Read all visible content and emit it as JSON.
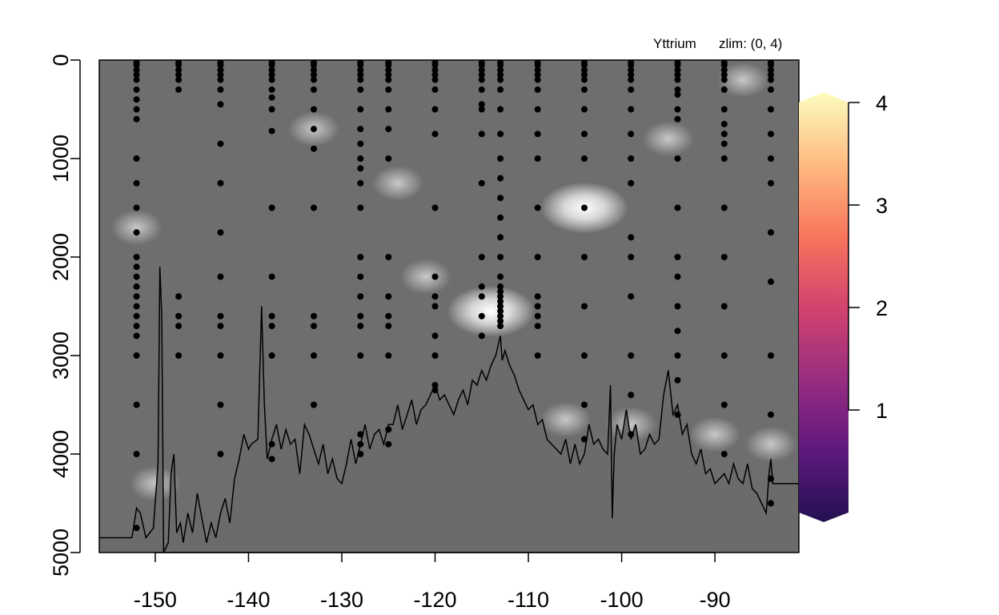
{
  "chart_data": {
    "type": "heatmap",
    "title": "Yttrium",
    "zlim_label": "zlim: (0, 4)",
    "xlabel": "",
    "ylabel": "",
    "xlim": [
      -156,
      -81
    ],
    "ylim": [
      5000,
      0
    ],
    "zlim": [
      0,
      4
    ],
    "x_ticks": [
      -150,
      -140,
      -130,
      -120,
      -110,
      -100,
      -90
    ],
    "x_tick_labels": [
      "-150",
      "-140",
      "-130",
      "-120",
      "-110",
      "-100",
      "-90"
    ],
    "y_ticks": [
      0,
      1000,
      2000,
      3000,
      4000,
      5000
    ],
    "y_tick_labels": [
      "0",
      "1000",
      "2000",
      "3000",
      "4000",
      "5000"
    ],
    "colorbar": {
      "palette": "magma",
      "ticks": [
        1,
        2,
        3,
        4
      ],
      "tick_labels": [
        "1",
        "2",
        "3",
        "4"
      ],
      "stops": [
        "#231151",
        "#5f187f",
        "#982d80",
        "#d3436e",
        "#f8765c",
        "#febb81",
        "#fcfdbf"
      ]
    },
    "field_colors": {
      "background": "#6e6e6e",
      "seafloor": "#6b6b6b"
    },
    "highlights": [
      {
        "x": -104,
        "y": 1500,
        "level": "high"
      },
      {
        "x": -114,
        "y": 2550,
        "level": "high"
      },
      {
        "x": -95,
        "y": 800,
        "level": "medium"
      },
      {
        "x": -87,
        "y": 200,
        "level": "medium"
      },
      {
        "x": -99,
        "y": 3700,
        "level": "medium"
      },
      {
        "x": -90,
        "y": 3800,
        "level": "medium"
      },
      {
        "x": -84,
        "y": 3900,
        "level": "medium"
      },
      {
        "x": -106,
        "y": 3650,
        "level": "medium"
      },
      {
        "x": -121,
        "y": 2200,
        "level": "medium"
      },
      {
        "x": -133,
        "y": 700,
        "level": "medium"
      },
      {
        "x": -124,
        "y": 1250,
        "level": "medium"
      },
      {
        "x": -152,
        "y": 1700,
        "level": "medium"
      },
      {
        "x": -150,
        "y": 4300,
        "level": "medium"
      }
    ],
    "stations": [
      {
        "x": -152,
        "depths": [
          25,
          50,
          100,
          150,
          200,
          300,
          400,
          500,
          600,
          1000,
          1250,
          1500,
          1750,
          2000,
          2100,
          2200,
          2300,
          2400,
          2500,
          2600,
          2700,
          2800,
          3000,
          3500,
          4000,
          4750
        ]
      },
      {
        "x": -147.5,
        "depths": [
          25,
          50,
          100,
          150,
          200,
          300,
          2400,
          2600,
          2700,
          3000
        ]
      },
      {
        "x": -143,
        "depths": [
          25,
          50,
          100,
          150,
          200,
          300,
          450,
          850,
          1250,
          1750,
          2200,
          2600,
          2700,
          3000,
          3500,
          4000
        ]
      },
      {
        "x": -137.5,
        "depths": [
          25,
          50,
          100,
          150,
          200,
          300,
          380,
          500,
          720,
          1500,
          2200,
          2600,
          2700,
          3000,
          3900,
          4050
        ]
      },
      {
        "x": -133,
        "depths": [
          25,
          50,
          100,
          150,
          200,
          300,
          500,
          700,
          900,
          1500,
          2600,
          2700,
          3000,
          3500
        ]
      },
      {
        "x": -128,
        "depths": [
          25,
          50,
          100,
          150,
          200,
          300,
          500,
          700,
          850,
          1000,
          1100,
          1250,
          1500,
          2000,
          2200,
          2400,
          2600,
          2700,
          3000,
          3800,
          3900,
          4000
        ]
      },
      {
        "x": -125,
        "depths": [
          25,
          50,
          100,
          150,
          200,
          300,
          500,
          700,
          1000,
          2000,
          2400,
          2600,
          2700,
          3000,
          3750,
          3900
        ]
      },
      {
        "x": -120,
        "depths": [
          25,
          50,
          100,
          150,
          200,
          300,
          500,
          750,
          1500,
          2200,
          2400,
          2500,
          2800,
          3000,
          3300,
          3350
        ]
      },
      {
        "x": -115,
        "depths": [
          25,
          50,
          100,
          150,
          200,
          300,
          450,
          500,
          750,
          1250,
          2000,
          2300,
          2400,
          2600,
          2800
        ]
      },
      {
        "x": -113,
        "depths": [
          25,
          50,
          100,
          150,
          200,
          300,
          500,
          750,
          1000,
          1200,
          1400,
          1600,
          1800,
          2000,
          2200,
          2300,
          2350,
          2400,
          2450,
          2500,
          2550,
          2600,
          2650,
          2700
        ]
      },
      {
        "x": -109,
        "depths": [
          25,
          50,
          100,
          150,
          200,
          300,
          500,
          750,
          1000,
          1500,
          2000,
          2400,
          2500,
          2600,
          2700,
          3000
        ]
      },
      {
        "x": -104,
        "depths": [
          25,
          50,
          100,
          150,
          200,
          300,
          500,
          750,
          1000,
          1500,
          2000,
          2500,
          3000,
          3500,
          3850
        ]
      },
      {
        "x": -99,
        "depths": [
          25,
          50,
          100,
          150,
          200,
          300,
          500,
          750,
          1000,
          1250,
          1800,
          2000,
          2400,
          3000,
          3400,
          3800
        ]
      },
      {
        "x": -94,
        "depths": [
          25,
          50,
          100,
          150,
          200,
          300,
          350,
          500,
          600,
          1000,
          1500,
          2000,
          2200,
          2500,
          2750,
          3000,
          3250,
          3600
        ]
      },
      {
        "x": -89,
        "depths": [
          25,
          50,
          100,
          150,
          200,
          300,
          500,
          650,
          750,
          850,
          1000,
          1500,
          2000,
          2500,
          3000,
          3500,
          4000
        ]
      },
      {
        "x": -84,
        "depths": [
          25,
          50,
          100,
          150,
          200,
          300,
          500,
          750,
          1000,
          1250,
          1750,
          2250,
          3000,
          3600,
          4250,
          4500
        ]
      }
    ],
    "bathymetry": {
      "x": [
        -156,
        -152.5,
        -152,
        -151.6,
        -151,
        -150.2,
        -149.7,
        -149.5,
        -149.3,
        -149.1,
        -148.6,
        -148.3,
        -148,
        -147.7,
        -147.3,
        -147,
        -146.5,
        -146,
        -145.5,
        -145,
        -144.5,
        -144,
        -143.5,
        -143,
        -142.5,
        -142,
        -141.5,
        -141,
        -140.5,
        -140,
        -139.7,
        -139,
        -138.6,
        -138.3,
        -138,
        -137.5,
        -137,
        -136.5,
        -136,
        -135.5,
        -135,
        -134.5,
        -134,
        -133.5,
        -133,
        -132.5,
        -132,
        -131.5,
        -131,
        -130.5,
        -130,
        -129.5,
        -129,
        -128.5,
        -128,
        -127.5,
        -127,
        -126.5,
        -126,
        -125.5,
        -125,
        -124.5,
        -124,
        -123.5,
        -123,
        -122.5,
        -122,
        -121.5,
        -121,
        -120.5,
        -120,
        -119.5,
        -119,
        -118.5,
        -118,
        -117.5,
        -117,
        -116.5,
        -116,
        -115.5,
        -115,
        -114.5,
        -114,
        -113.5,
        -113,
        -112.8,
        -112.5,
        -112,
        -111.5,
        -111,
        -110.5,
        -110,
        -109.5,
        -109,
        -108.5,
        -108,
        -107.5,
        -107,
        -106.5,
        -106,
        -105.5,
        -105,
        -104.5,
        -104,
        -103.5,
        -103,
        -102.5,
        -102,
        -101.5,
        -101.2,
        -101,
        -100.8,
        -100.5,
        -100,
        -99.5,
        -99,
        -98.5,
        -98,
        -97.5,
        -97,
        -96.5,
        -96,
        -95.5,
        -95,
        -94.5,
        -94,
        -93.5,
        -93,
        -92.5,
        -92,
        -91.5,
        -91,
        -90.5,
        -90,
        -89.5,
        -89,
        -88.5,
        -88,
        -87.5,
        -87,
        -86.5,
        -86,
        -85.5,
        -85,
        -84.5,
        -84.2,
        -84,
        -83.8,
        -83.5,
        -81
      ],
      "depth": [
        4850,
        4850,
        4550,
        4600,
        4850,
        4750,
        4100,
        2100,
        2600,
        5000,
        4900,
        4200,
        4000,
        4800,
        4700,
        4900,
        4600,
        4800,
        4400,
        4650,
        4900,
        4700,
        4850,
        4600,
        4450,
        4700,
        4250,
        4050,
        3800,
        3950,
        3900,
        3850,
        2500,
        3500,
        4050,
        3850,
        3700,
        3950,
        3750,
        3900,
        3850,
        4200,
        3700,
        3800,
        3950,
        4100,
        3900,
        4200,
        4050,
        4250,
        4300,
        4100,
        3850,
        4100,
        3900,
        3700,
        3950,
        3800,
        3750,
        3900,
        3700,
        3700,
        3500,
        3750,
        3600,
        3450,
        3700,
        3550,
        3500,
        3400,
        3300,
        3450,
        3400,
        3500,
        3600,
        3450,
        3350,
        3500,
        3250,
        3300,
        3150,
        3250,
        3100,
        3000,
        2800,
        3050,
        2950,
        3100,
        3200,
        3350,
        3450,
        3550,
        3500,
        3700,
        3650,
        3850,
        3900,
        3950,
        4000,
        3850,
        4100,
        3900,
        4100,
        4000,
        3700,
        3900,
        3850,
        3950,
        4000,
        3300,
        4650,
        4000,
        3700,
        3850,
        3550,
        3850,
        3700,
        4000,
        3950,
        3800,
        3900,
        3850,
        3400,
        3150,
        3600,
        3500,
        3800,
        3700,
        4000,
        4100,
        3950,
        4200,
        4150,
        4300,
        4250,
        4200,
        4300,
        4100,
        4250,
        4300,
        4100,
        4350,
        4400,
        4500,
        4600,
        4200,
        4050,
        4300,
        4300,
        4300
      ]
    }
  }
}
